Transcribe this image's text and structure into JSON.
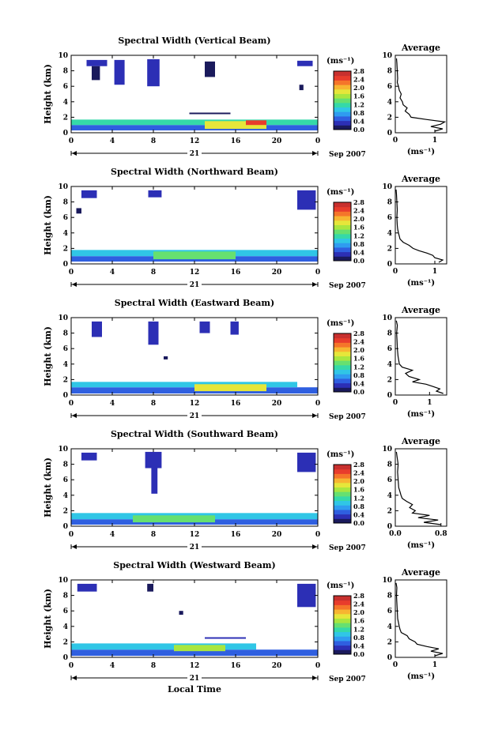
{
  "figure": {
    "xlabel": "Local Time",
    "day_label": "21",
    "date_label": "Sep 2007",
    "colorbar_unit": "(ms⁻¹)",
    "avg_title": "Average",
    "avg_xlabel": "(ms⁻¹)"
  },
  "colorbar": {
    "ticks": [
      "0.0",
      "0.4",
      "0.8",
      "1.2",
      "1.6",
      "2.0",
      "2.4",
      "2.8"
    ],
    "colors": [
      "#1a1a5c",
      "#2c2fb5",
      "#2f5fe0",
      "#2f9cf0",
      "#30c6e6",
      "#35d9a8",
      "#66e070",
      "#a9e63f",
      "#e6e63a",
      "#f7b531",
      "#f5752a",
      "#e83c2c",
      "#c8302e"
    ]
  },
  "chart_data": [
    {
      "type": "heatmap",
      "title": "Spectral Width (Vertical Beam)",
      "ylabel": "Height (km)",
      "xlabel": "",
      "x_ticks": [
        "0",
        "4",
        "8",
        "12",
        "16",
        "20",
        "0"
      ],
      "y_ticks": [
        "0",
        "2",
        "4",
        "6",
        "8",
        "10"
      ],
      "xlim": [
        0,
        24
      ],
      "ylim": [
        0,
        10
      ],
      "blocks": [
        {
          "x0": 0.0,
          "x1": 24.0,
          "y0": 0.3,
          "y1": 1.0,
          "v": 0.6
        },
        {
          "x0": 0.0,
          "x1": 24.0,
          "y0": 1.0,
          "y1": 1.7,
          "v": 1.1
        },
        {
          "x0": 13.0,
          "x1": 19.0,
          "y0": 0.5,
          "y1": 1.5,
          "v": 1.9
        },
        {
          "x0": 17.0,
          "x1": 19.0,
          "y0": 1.0,
          "y1": 1.6,
          "v": 2.4
        },
        {
          "x0": 11.5,
          "x1": 15.5,
          "y0": 2.4,
          "y1": 2.6,
          "v": 0.2
        },
        {
          "x0": 1.5,
          "x1": 3.5,
          "y0": 8.6,
          "y1": 9.4,
          "v": 0.3
        },
        {
          "x0": 2.0,
          "x1": 2.8,
          "y0": 6.8,
          "y1": 8.6,
          "v": 0.2
        },
        {
          "x0": 4.2,
          "x1": 5.2,
          "y0": 6.2,
          "y1": 9.4,
          "v": 0.3
        },
        {
          "x0": 7.4,
          "x1": 8.6,
          "y0": 6.0,
          "y1": 9.5,
          "v": 0.3
        },
        {
          "x0": 13.0,
          "x1": 14.0,
          "y0": 7.2,
          "y1": 9.2,
          "v": 0.2
        },
        {
          "x0": 22.0,
          "x1": 23.5,
          "y0": 8.6,
          "y1": 9.3,
          "v": 0.3
        },
        {
          "x0": 22.2,
          "x1": 22.6,
          "y0": 5.5,
          "y1": 6.2,
          "v": 0.2
        }
      ],
      "average": {
        "xlim": [
          0,
          1.3
        ],
        "x_ticks": [
          "0",
          "1"
        ],
        "tick_values": [
          0,
          1
        ],
        "y_ticks": [
          "0",
          "2",
          "4",
          "6",
          "8",
          "10"
        ],
        "heights": [
          0.2,
          0.5,
          0.8,
          1.1,
          1.4,
          1.7,
          2.0,
          2.4,
          2.8,
          3.2,
          3.6,
          4.0,
          4.5,
          5.0,
          5.5,
          6.0,
          6.5,
          7.0,
          8.0,
          9.0,
          9.6
        ],
        "values": [
          1.0,
          1.2,
          0.9,
          1.15,
          1.25,
          0.8,
          0.4,
          0.35,
          0.25,
          0.3,
          0.2,
          0.18,
          0.12,
          0.15,
          0.1,
          0.08,
          0.05,
          0.06,
          0.05,
          0.04,
          0.03
        ]
      }
    },
    {
      "type": "heatmap",
      "title": "Spectral Width (Northward Beam)",
      "ylabel": "Height (km)",
      "xlabel": "",
      "x_ticks": [
        "0",
        "4",
        "8",
        "12",
        "16",
        "20",
        "0"
      ],
      "y_ticks": [
        "0",
        "2",
        "4",
        "6",
        "8",
        "10"
      ],
      "xlim": [
        0,
        24
      ],
      "ylim": [
        0,
        10
      ],
      "blocks": [
        {
          "x0": 0.0,
          "x1": 24.0,
          "y0": 0.3,
          "y1": 1.0,
          "v": 0.5
        },
        {
          "x0": 0.0,
          "x1": 24.0,
          "y0": 1.0,
          "y1": 1.8,
          "v": 0.9
        },
        {
          "x0": 8.0,
          "x1": 16.0,
          "y0": 0.6,
          "y1": 1.6,
          "v": 1.5
        },
        {
          "x0": 1.0,
          "x1": 2.5,
          "y0": 8.5,
          "y1": 9.5,
          "v": 0.3
        },
        {
          "x0": 7.5,
          "x1": 8.8,
          "y0": 8.6,
          "y1": 9.5,
          "v": 0.3
        },
        {
          "x0": 22.0,
          "x1": 23.8,
          "y0": 7.0,
          "y1": 9.5,
          "v": 0.3
        },
        {
          "x0": 0.5,
          "x1": 1.0,
          "y0": 6.5,
          "y1": 7.2,
          "v": 0.2
        }
      ],
      "average": {
        "xlim": [
          0,
          1.3
        ],
        "x_ticks": [
          "0",
          "1"
        ],
        "tick_values": [
          0,
          1
        ],
        "y_ticks": [
          "0",
          "2",
          "4",
          "6",
          "8",
          "10"
        ],
        "heights": [
          0.2,
          0.5,
          0.8,
          1.1,
          1.4,
          1.7,
          2.0,
          2.4,
          2.8,
          3.2,
          3.6,
          4.0,
          4.5,
          5.0,
          6.0,
          7.0,
          8.0,
          9.0,
          9.6
        ],
        "values": [
          1.1,
          1.2,
          1.0,
          0.95,
          0.8,
          0.6,
          0.45,
          0.35,
          0.2,
          0.12,
          0.1,
          0.08,
          0.06,
          0.05,
          0.04,
          0.05,
          0.04,
          0.03,
          0.02
        ]
      }
    },
    {
      "type": "heatmap",
      "title": "Spectral Width (Eastward Beam)",
      "ylabel": "Height (km)",
      "xlabel": "",
      "x_ticks": [
        "0",
        "4",
        "8",
        "12",
        "16",
        "20",
        "0"
      ],
      "y_ticks": [
        "0",
        "2",
        "4",
        "6",
        "8",
        "10"
      ],
      "xlim": [
        0,
        24
      ],
      "ylim": [
        0,
        10
      ],
      "blocks": [
        {
          "x0": 0.0,
          "x1": 24.0,
          "y0": 0.2,
          "y1": 1.0,
          "v": 0.6
        },
        {
          "x0": 0.0,
          "x1": 22.0,
          "y0": 1.0,
          "y1": 1.7,
          "v": 1.0
        },
        {
          "x0": 12.0,
          "x1": 19.0,
          "y0": 0.5,
          "y1": 1.4,
          "v": 1.8
        },
        {
          "x0": 2.0,
          "x1": 3.0,
          "y0": 7.5,
          "y1": 9.5,
          "v": 0.3
        },
        {
          "x0": 7.5,
          "x1": 8.5,
          "y0": 6.5,
          "y1": 9.5,
          "v": 0.3
        },
        {
          "x0": 12.5,
          "x1": 13.5,
          "y0": 8.0,
          "y1": 9.5,
          "v": 0.4
        },
        {
          "x0": 15.5,
          "x1": 16.3,
          "y0": 7.8,
          "y1": 9.5,
          "v": 0.3
        },
        {
          "x0": 9.0,
          "x1": 9.4,
          "y0": 4.6,
          "y1": 5.0,
          "v": 0.2
        }
      ],
      "average": {
        "xlim": [
          0,
          1.5
        ],
        "x_ticks": [
          "0",
          "1"
        ],
        "tick_values": [
          0,
          1
        ],
        "y_ticks": [
          "0",
          "2",
          "4",
          "6",
          "8",
          "10"
        ],
        "heights": [
          0.2,
          0.5,
          0.8,
          1.1,
          1.4,
          1.7,
          2.0,
          2.4,
          2.8,
          3.2,
          3.6,
          4.0,
          4.5,
          5.0,
          6.0,
          7.0,
          8.0,
          9.0,
          9.6
        ],
        "values": [
          1.4,
          1.2,
          1.3,
          1.1,
          0.9,
          0.5,
          0.7,
          0.4,
          0.3,
          0.5,
          0.2,
          0.12,
          0.1,
          0.08,
          0.06,
          0.05,
          0.04,
          0.06,
          0.03
        ]
      }
    },
    {
      "type": "heatmap",
      "title": "Spectral Width (Southward Beam)",
      "ylabel": "Height (km)",
      "xlabel": "",
      "x_ticks": [
        "0",
        "4",
        "8",
        "12",
        "16",
        "20",
        "0"
      ],
      "y_ticks": [
        "0",
        "2",
        "4",
        "6",
        "8",
        "10"
      ],
      "xlim": [
        0,
        24
      ],
      "ylim": [
        0,
        10
      ],
      "blocks": [
        {
          "x0": 0.0,
          "x1": 24.0,
          "y0": 0.2,
          "y1": 0.9,
          "v": 0.5
        },
        {
          "x0": 0.0,
          "x1": 24.0,
          "y0": 0.9,
          "y1": 1.7,
          "v": 0.9
        },
        {
          "x0": 6.0,
          "x1": 14.0,
          "y0": 0.5,
          "y1": 1.4,
          "v": 1.4
        },
        {
          "x0": 1.0,
          "x1": 2.5,
          "y0": 8.5,
          "y1": 9.5,
          "v": 0.3
        },
        {
          "x0": 7.2,
          "x1": 8.8,
          "y0": 7.5,
          "y1": 9.6,
          "v": 0.4
        },
        {
          "x0": 7.8,
          "x1": 8.4,
          "y0": 4.2,
          "y1": 7.5,
          "v": 0.3
        },
        {
          "x0": 22.0,
          "x1": 23.8,
          "y0": 7.0,
          "y1": 9.5,
          "v": 0.3
        }
      ],
      "average": {
        "xlim": [
          0,
          0.9
        ],
        "x_ticks": [
          "0.0",
          "0.8"
        ],
        "tick_values": [
          0,
          0.8
        ],
        "y_ticks": [
          "0",
          "2",
          "4",
          "6",
          "8",
          "10"
        ],
        "heights": [
          0.2,
          0.5,
          0.8,
          1.1,
          1.4,
          1.7,
          2.0,
          2.4,
          2.8,
          3.2,
          3.6,
          4.0,
          4.5,
          5.0,
          6.0,
          7.0,
          8.0,
          9.0,
          9.6
        ],
        "values": [
          0.8,
          0.5,
          0.75,
          0.4,
          0.6,
          0.3,
          0.35,
          0.25,
          0.3,
          0.2,
          0.12,
          0.1,
          0.08,
          0.06,
          0.05,
          0.04,
          0.05,
          0.03,
          0.02
        ]
      }
    },
    {
      "type": "heatmap",
      "title": "Spectral Width (Westward Beam)",
      "ylabel": "Height (km)",
      "xlabel": "Local Time",
      "x_ticks": [
        "0",
        "4",
        "8",
        "12",
        "16",
        "20",
        "0"
      ],
      "y_ticks": [
        "0",
        "2",
        "4",
        "6",
        "8",
        "10"
      ],
      "xlim": [
        0,
        24
      ],
      "ylim": [
        0,
        10
      ],
      "blocks": [
        {
          "x0": 0.0,
          "x1": 24.0,
          "y0": 0.2,
          "y1": 1.0,
          "v": 0.5
        },
        {
          "x0": 0.0,
          "x1": 18.0,
          "y0": 1.0,
          "y1": 1.8,
          "v": 1.0
        },
        {
          "x0": 10.0,
          "x1": 15.0,
          "y0": 0.8,
          "y1": 1.6,
          "v": 1.6
        },
        {
          "x0": 13.0,
          "x1": 17.0,
          "y0": 2.4,
          "y1": 2.6,
          "v": 0.3
        },
        {
          "x0": 0.6,
          "x1": 2.5,
          "y0": 8.5,
          "y1": 9.5,
          "v": 0.3
        },
        {
          "x0": 7.4,
          "x1": 8.0,
          "y0": 8.5,
          "y1": 9.5,
          "v": 0.2
        },
        {
          "x0": 22.0,
          "x1": 23.8,
          "y0": 6.5,
          "y1": 9.5,
          "v": 0.3
        },
        {
          "x0": 10.5,
          "x1": 10.9,
          "y0": 5.5,
          "y1": 6.0,
          "v": 0.2
        }
      ],
      "average": {
        "xlim": [
          0,
          1.3
        ],
        "x_ticks": [
          "0",
          "1"
        ],
        "tick_values": [
          0,
          1
        ],
        "y_ticks": [
          "0",
          "2",
          "4",
          "6",
          "8",
          "10"
        ],
        "heights": [
          0.2,
          0.5,
          0.8,
          1.1,
          1.4,
          1.7,
          2.0,
          2.4,
          2.8,
          3.2,
          3.6,
          4.0,
          4.5,
          5.0,
          6.0,
          7.0,
          8.0,
          9.0,
          9.6
        ],
        "values": [
          1.0,
          1.2,
          0.9,
          1.1,
          0.8,
          0.55,
          0.5,
          0.35,
          0.3,
          0.15,
          0.12,
          0.1,
          0.08,
          0.06,
          0.05,
          0.04,
          0.03,
          0.04,
          0.02
        ]
      }
    }
  ]
}
